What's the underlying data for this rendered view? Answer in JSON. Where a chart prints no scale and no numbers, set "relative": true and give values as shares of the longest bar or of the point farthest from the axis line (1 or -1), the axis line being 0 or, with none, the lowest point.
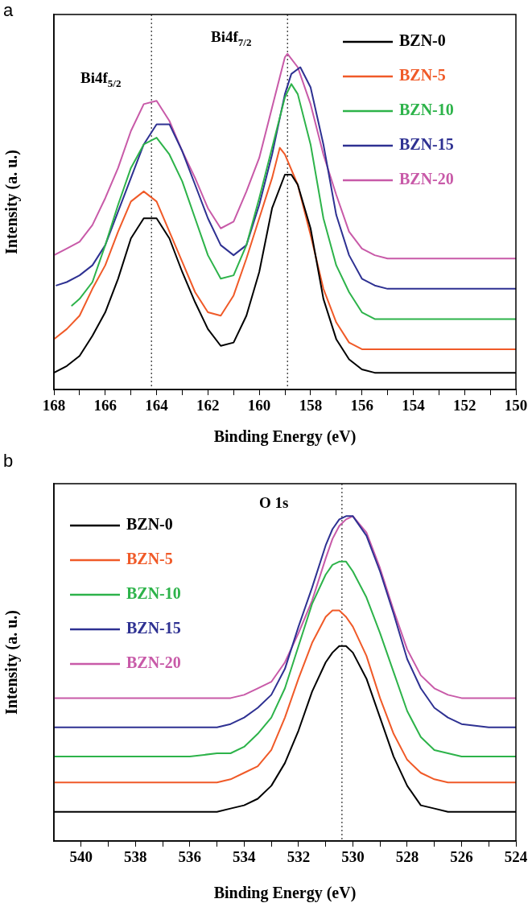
{
  "chart_data": [
    {
      "type": "line",
      "title": "a",
      "xlabel": "Binding Energy (eV)",
      "ylabel": "Intensity (a. u.)",
      "relative": true,
      "legend": "top right",
      "marker": "none",
      "line_style": "solid",
      "xlim": [
        168,
        150
      ],
      "xticks": [
        168,
        {
          "value": 167,
          "label": null
        },
        166,
        {
          "value": 165,
          "label": null
        },
        164,
        {
          "value": 163,
          "label": null
        },
        162,
        {
          "value": 161,
          "label": null
        },
        160,
        {
          "value": 159,
          "label": null
        },
        158,
        {
          "value": 157,
          "label": null
        },
        156,
        {
          "value": 155,
          "label": null
        },
        154,
        {
          "value": 153,
          "label": null
        },
        152,
        {
          "value": 151,
          "label": null
        },
        150
      ],
      "annotations": [
        "Bi4f$_{5/2}$",
        "Bi4f$_{7/2}$"
      ],
      "ref_lines": [
        {
          "axis": "x",
          "value": 164.2,
          "color": "#000000",
          "line_style": "dotted"
        },
        {
          "axis": "x",
          "value": 158.9,
          "color": "#000000",
          "line_style": "dotted"
        }
      ],
      "series": [
        {
          "name": "BZN-0",
          "color": "#000000",
          "x": [
            168,
            167.5,
            167,
            166.5,
            166,
            165.5,
            165,
            164.5,
            164,
            163.5,
            163,
            162.5,
            162,
            161.5,
            161,
            160.5,
            160,
            159.5,
            159,
            158.75,
            158.5,
            158,
            157.5,
            157,
            156.5,
            156,
            155.5,
            155,
            154,
            150
          ],
          "values": [
            0.05,
            0.07,
            0.1,
            0.16,
            0.23,
            0.33,
            0.45,
            0.51,
            0.51,
            0.45,
            0.35,
            0.26,
            0.18,
            0.13,
            0.14,
            0.22,
            0.35,
            0.54,
            0.64,
            0.64,
            0.61,
            0.48,
            0.27,
            0.15,
            0.09,
            0.06,
            0.05,
            0.05,
            0.05,
            0.05
          ]
        },
        {
          "name": "BZN-5",
          "color": "#f05a28",
          "x": [
            168,
            167.5,
            167,
            166.5,
            166,
            165.5,
            165,
            164.5,
            164,
            163.5,
            163,
            162.5,
            162,
            161.5,
            161,
            160.5,
            160,
            159.5,
            159.2,
            159,
            158.5,
            158,
            157.5,
            157,
            156.5,
            156,
            155.5,
            155,
            154,
            150
          ],
          "values": [
            0.15,
            0.18,
            0.22,
            0.3,
            0.37,
            0.47,
            0.56,
            0.59,
            0.56,
            0.47,
            0.38,
            0.29,
            0.23,
            0.22,
            0.28,
            0.39,
            0.51,
            0.63,
            0.72,
            0.7,
            0.61,
            0.46,
            0.3,
            0.2,
            0.14,
            0.12,
            0.12,
            0.12,
            0.12,
            0.12
          ]
        },
        {
          "name": "BZN-10",
          "color": "#2db34a",
          "x": [
            167.3,
            167,
            166.5,
            166,
            165.5,
            165,
            164.5,
            164,
            163.5,
            163,
            162.5,
            162,
            161.5,
            161,
            160.5,
            160,
            159.5,
            159,
            158.75,
            158.5,
            158,
            157.5,
            157,
            156.5,
            156,
            155.5,
            155,
            154,
            150
          ],
          "values": [
            0.25,
            0.27,
            0.32,
            0.43,
            0.55,
            0.66,
            0.73,
            0.75,
            0.7,
            0.62,
            0.51,
            0.4,
            0.33,
            0.34,
            0.43,
            0.57,
            0.72,
            0.87,
            0.91,
            0.88,
            0.73,
            0.51,
            0.37,
            0.29,
            0.23,
            0.21,
            0.21,
            0.21,
            0.21
          ]
        },
        {
          "name": "BZN-15",
          "color": "#2e3192",
          "x": [
            167.9,
            167.5,
            167,
            166.5,
            166,
            165.5,
            165,
            164.5,
            164,
            163.5,
            163,
            162.5,
            162,
            161.5,
            161,
            160.5,
            160,
            159.5,
            159,
            158.75,
            158.4,
            158,
            157.5,
            157,
            156.5,
            156,
            155.5,
            155,
            154,
            150
          ],
          "values": [
            0.31,
            0.32,
            0.34,
            0.37,
            0.43,
            0.53,
            0.63,
            0.73,
            0.79,
            0.79,
            0.71,
            0.61,
            0.51,
            0.43,
            0.4,
            0.43,
            0.55,
            0.7,
            0.88,
            0.94,
            0.96,
            0.9,
            0.73,
            0.52,
            0.4,
            0.33,
            0.31,
            0.3,
            0.3,
            0.3
          ]
        },
        {
          "name": "BZN-20",
          "color": "#c85aa8",
          "x": [
            168,
            167.5,
            167,
            166.5,
            166,
            165.5,
            165,
            164.5,
            164,
            163.5,
            163,
            162.5,
            162,
            161.5,
            161,
            160.5,
            160,
            159.5,
            159,
            158.9,
            158.5,
            158,
            157.5,
            157,
            156.5,
            156,
            155.5,
            155,
            154,
            150
          ],
          "values": [
            0.4,
            0.42,
            0.44,
            0.49,
            0.57,
            0.66,
            0.77,
            0.85,
            0.86,
            0.8,
            0.71,
            0.63,
            0.54,
            0.48,
            0.5,
            0.59,
            0.69,
            0.84,
            0.99,
            1.0,
            0.96,
            0.85,
            0.7,
            0.58,
            0.47,
            0.42,
            0.4,
            0.39,
            0.39,
            0.39
          ]
        }
      ]
    },
    {
      "type": "line",
      "title": "b",
      "xlabel": "Binding Energy (eV)",
      "ylabel": "Intensity (a. u.)",
      "relative": true,
      "legend": "top left",
      "marker": "none",
      "line_style": "solid",
      "xlim": [
        541,
        524
      ],
      "xticks": [
        540,
        {
          "value": 539,
          "label": null
        },
        538,
        {
          "value": 537,
          "label": null
        },
        536,
        {
          "value": 535,
          "label": null
        },
        534,
        {
          "value": 533,
          "label": null
        },
        532,
        {
          "value": 531,
          "label": null
        },
        530,
        {
          "value": 529,
          "label": null
        },
        528,
        {
          "value": 527,
          "label": null
        },
        526,
        {
          "value": 525,
          "label": null
        },
        524
      ],
      "annotations": [
        "O 1s"
      ],
      "ref_lines": [
        {
          "axis": "x",
          "value": 530.4,
          "color": "#000000",
          "line_style": "dotted"
        }
      ],
      "x": [
        541,
        538,
        536,
        535,
        534.5,
        534,
        533.5,
        533,
        532.5,
        532,
        531.5,
        531,
        530.75,
        530.5,
        530.25,
        530,
        529.5,
        529,
        528.5,
        528,
        527.5,
        527,
        526.5,
        526,
        525,
        524
      ],
      "series": [
        {
          "name": "BZN-0",
          "color": "#000000",
          "values": [
            0.09,
            0.09,
            0.09,
            0.09,
            0.1,
            0.11,
            0.13,
            0.17,
            0.24,
            0.34,
            0.46,
            0.55,
            0.58,
            0.6,
            0.6,
            0.58,
            0.5,
            0.38,
            0.26,
            0.17,
            0.11,
            0.1,
            0.09,
            0.09,
            0.09,
            0.09
          ]
        },
        {
          "name": "BZN-5",
          "color": "#f05a28",
          "values": [
            0.18,
            0.18,
            0.18,
            0.18,
            0.19,
            0.21,
            0.23,
            0.28,
            0.38,
            0.5,
            0.61,
            0.69,
            0.71,
            0.71,
            0.69,
            0.66,
            0.57,
            0.44,
            0.33,
            0.25,
            0.21,
            0.19,
            0.18,
            0.18,
            0.18,
            0.18
          ]
        },
        {
          "name": "BZN-10",
          "color": "#2db34a",
          "values": [
            0.26,
            0.26,
            0.26,
            0.27,
            0.27,
            0.29,
            0.33,
            0.38,
            0.47,
            0.6,
            0.73,
            0.82,
            0.85,
            0.86,
            0.86,
            0.83,
            0.75,
            0.64,
            0.52,
            0.4,
            0.32,
            0.28,
            0.27,
            0.26,
            0.26,
            0.26
          ]
        },
        {
          "name": "BZN-15",
          "color": "#2e3192",
          "values": [
            0.35,
            0.35,
            0.35,
            0.35,
            0.36,
            0.38,
            0.41,
            0.45,
            0.53,
            0.66,
            0.78,
            0.91,
            0.96,
            0.99,
            1.0,
            1.0,
            0.94,
            0.83,
            0.7,
            0.56,
            0.47,
            0.41,
            0.38,
            0.36,
            0.35,
            0.35
          ]
        },
        {
          "name": "BZN-20",
          "color": "#c85aa8",
          "values": [
            0.44,
            0.44,
            0.44,
            0.44,
            0.44,
            0.45,
            0.47,
            0.49,
            0.55,
            0.64,
            0.74,
            0.87,
            0.93,
            0.97,
            0.99,
            1.0,
            0.95,
            0.84,
            0.71,
            0.59,
            0.51,
            0.47,
            0.45,
            0.44,
            0.44,
            0.44
          ]
        }
      ]
    }
  ]
}
